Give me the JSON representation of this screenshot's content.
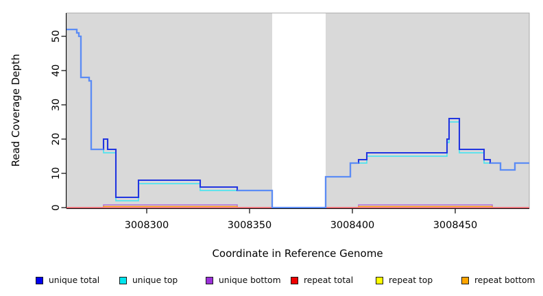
{
  "y_axis": {
    "label": "Read Coverage Depth",
    "ticks": [
      0,
      10,
      20,
      30,
      40,
      50
    ]
  },
  "x_axis": {
    "label": "Coordinate in Reference Genome",
    "ticks": [
      3008300,
      3008350,
      3008400,
      3008450
    ]
  },
  "legend": [
    {
      "label": "unique total",
      "color": "#0000EE"
    },
    {
      "label": "unique top",
      "color": "#00E5EE"
    },
    {
      "label": "unique bottom",
      "color": "#9B30D9"
    },
    {
      "label": "repeat total",
      "color": "#EE0000"
    },
    {
      "label": "repeat top",
      "color": "#FFFF00"
    },
    {
      "label": "repeat bottom",
      "color": "#FFA500"
    }
  ],
  "chart_data": {
    "type": "step-line",
    "title": "",
    "xlabel": "Coordinate in Reference Genome",
    "ylabel": "Read Coverage Depth",
    "x_range": [
      3008261,
      3008486
    ],
    "y_range": [
      0,
      56.8
    ],
    "grid": false,
    "plot_bg": "#D9D9D9",
    "masked_region": {
      "from": 3008361,
      "to": 3008387,
      "color": "#FFFFFF"
    },
    "colors": {
      "unique_total_line": "#2135E0",
      "unique_total_merged": "#5B8CF5",
      "unique_top_line": "#4FE3EE",
      "unique_bottom_line": "#B06FDC",
      "repeat_total_line": "#E8638F",
      "repeat_top_line": "#FFFF00",
      "repeat_bottom_line": "#FFA41B"
    },
    "series": [
      {
        "name": "unique total",
        "steps": [
          [
            3008261,
            52
          ],
          [
            3008266,
            51
          ],
          [
            3008267,
            50
          ],
          [
            3008268,
            38
          ],
          [
            3008272,
            37
          ],
          [
            3008273,
            17
          ],
          [
            3008279,
            20
          ],
          [
            3008281,
            17
          ],
          [
            3008285,
            3
          ],
          [
            3008296,
            8
          ],
          [
            3008326,
            6
          ],
          [
            3008344,
            5
          ],
          [
            3008361,
            0
          ],
          [
            3008387,
            9
          ],
          [
            3008399,
            13
          ],
          [
            3008403,
            14
          ],
          [
            3008407,
            16
          ],
          [
            3008446,
            20
          ],
          [
            3008447,
            26
          ],
          [
            3008452,
            17
          ],
          [
            3008464,
            14
          ],
          [
            3008467,
            13
          ],
          [
            3008472,
            11
          ],
          [
            3008479,
            13
          ]
        ]
      },
      {
        "name": "unique top",
        "steps": [
          [
            3008261,
            52
          ],
          [
            3008266,
            51
          ],
          [
            3008267,
            50
          ],
          [
            3008268,
            38
          ],
          [
            3008272,
            37
          ],
          [
            3008273,
            17
          ],
          [
            3008279,
            16
          ],
          [
            3008285,
            2
          ],
          [
            3008296,
            7
          ],
          [
            3008326,
            5
          ],
          [
            3008344,
            5
          ],
          [
            3008361,
            0
          ],
          [
            3008387,
            9
          ],
          [
            3008399,
            13
          ],
          [
            3008407,
            15
          ],
          [
            3008446,
            19
          ],
          [
            3008447,
            25
          ],
          [
            3008452,
            16
          ],
          [
            3008464,
            13
          ],
          [
            3008472,
            11
          ],
          [
            3008479,
            13
          ]
        ]
      },
      {
        "name": "unique bottom",
        "steps": [
          [
            3008261,
            0
          ],
          [
            3008279,
            1
          ],
          [
            3008344,
            0
          ],
          [
            3008403,
            1
          ],
          [
            3008468,
            0
          ]
        ]
      },
      {
        "name": "repeat total",
        "steps": [
          [
            3008261,
            0
          ]
        ]
      },
      {
        "name": "repeat top",
        "steps": [
          [
            3008261,
            0
          ]
        ]
      },
      {
        "name": "repeat bottom",
        "steps": [
          [
            3008261,
            0
          ],
          [
            3008279,
            1
          ],
          [
            3008344,
            0
          ],
          [
            3008403,
            1
          ],
          [
            3008468,
            0
          ]
        ]
      }
    ]
  }
}
